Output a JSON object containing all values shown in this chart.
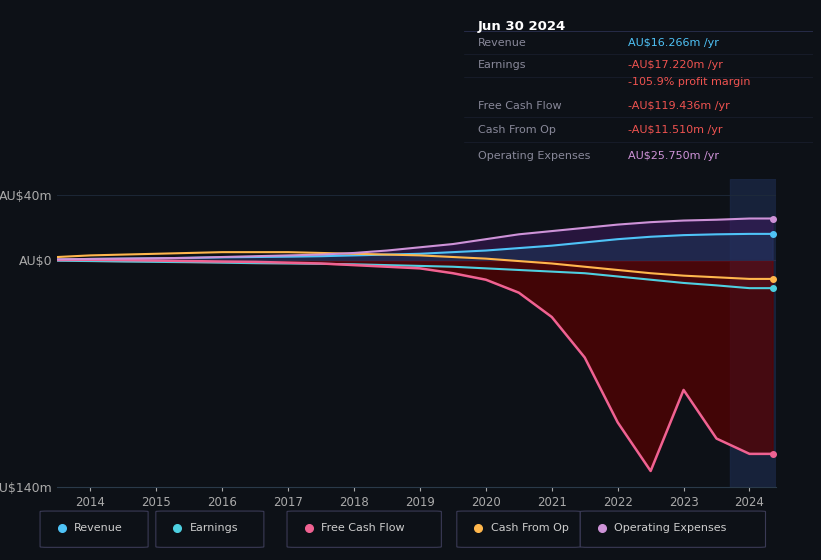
{
  "background_color": "#0d1117",
  "plot_bg_color": "#0d1117",
  "title_box": {
    "date": "Jun 30 2024",
    "rows": [
      {
        "label": "Revenue",
        "value": "AU$16.266m /yr",
        "value_color": "#4fc3f7"
      },
      {
        "label": "Earnings",
        "value": "-AU$17.220m /yr",
        "value_color": "#ef5350"
      },
      {
        "label": "",
        "value": "-105.9% profit margin",
        "value_color": "#ef5350"
      },
      {
        "label": "Free Cash Flow",
        "value": "-AU$119.436m /yr",
        "value_color": "#ef5350"
      },
      {
        "label": "Cash From Op",
        "value": "-AU$11.510m /yr",
        "value_color": "#ef5350"
      },
      {
        "label": "Operating Expenses",
        "value": "AU$25.750m /yr",
        "value_color": "#ce93d8"
      }
    ]
  },
  "years": [
    2013.5,
    2014,
    2014.5,
    2015,
    2015.5,
    2016,
    2016.5,
    2017,
    2017.5,
    2018,
    2018.5,
    2019,
    2019.5,
    2020,
    2020.5,
    2021,
    2021.5,
    2022,
    2022.5,
    2023,
    2023.5,
    2024,
    2024.35
  ],
  "revenue": [
    0.5,
    0.8,
    1.0,
    1.2,
    1.5,
    1.8,
    2.0,
    2.2,
    2.5,
    3.0,
    3.5,
    4.0,
    5.0,
    6.0,
    7.5,
    9.0,
    11.0,
    13.0,
    14.5,
    15.5,
    16.0,
    16.266,
    16.266
  ],
  "earnings": [
    -0.3,
    -0.5,
    -0.8,
    -1.0,
    -1.2,
    -1.5,
    -1.8,
    -2.0,
    -2.2,
    -2.5,
    -3.0,
    -3.5,
    -4.0,
    -5.0,
    -6.0,
    -7.0,
    -8.0,
    -10.0,
    -12.0,
    -14.0,
    -15.5,
    -17.22,
    -17.22
  ],
  "free_cash_flow": [
    0.2,
    0.3,
    0.1,
    -0.2,
    -0.5,
    -0.8,
    -1.0,
    -1.5,
    -2.0,
    -3.0,
    -4.0,
    -5.0,
    -8.0,
    -12.0,
    -20.0,
    -35.0,
    -60.0,
    -100.0,
    -130.0,
    -80.0,
    -110.0,
    -119.436,
    -119.436
  ],
  "cash_from_op": [
    2.0,
    3.0,
    3.5,
    4.0,
    4.5,
    5.0,
    5.0,
    5.0,
    4.5,
    4.0,
    3.5,
    3.0,
    2.0,
    1.0,
    -0.5,
    -2.0,
    -4.0,
    -6.0,
    -8.0,
    -9.5,
    -10.5,
    -11.51,
    -11.51
  ],
  "operating_expenses": [
    0.5,
    0.8,
    1.0,
    1.2,
    1.5,
    2.0,
    2.5,
    3.0,
    3.5,
    4.5,
    6.0,
    8.0,
    10.0,
    13.0,
    16.0,
    18.0,
    20.0,
    22.0,
    23.5,
    24.5,
    25.0,
    25.75,
    25.75
  ],
  "ylim": [
    -140,
    50
  ],
  "yticks": [
    40,
    0,
    -140
  ],
  "ytick_labels": [
    "AU$40m",
    "AU$0",
    "-AU$140m"
  ],
  "xticks": [
    2014,
    2015,
    2016,
    2017,
    2018,
    2019,
    2020,
    2021,
    2022,
    2023,
    2024
  ],
  "colors": {
    "revenue": "#4fc3f7",
    "earnings": "#4dd0e1",
    "free_cash_flow": "#f06292",
    "cash_from_op": "#ffb74d",
    "operating_expenses": "#ce93d8"
  },
  "legend_labels": [
    "Revenue",
    "Earnings",
    "Free Cash Flow",
    "Cash From Op",
    "Operating Expenses"
  ],
  "highlight_x_start": 2023.7,
  "grid_color": "#1e2a3a"
}
